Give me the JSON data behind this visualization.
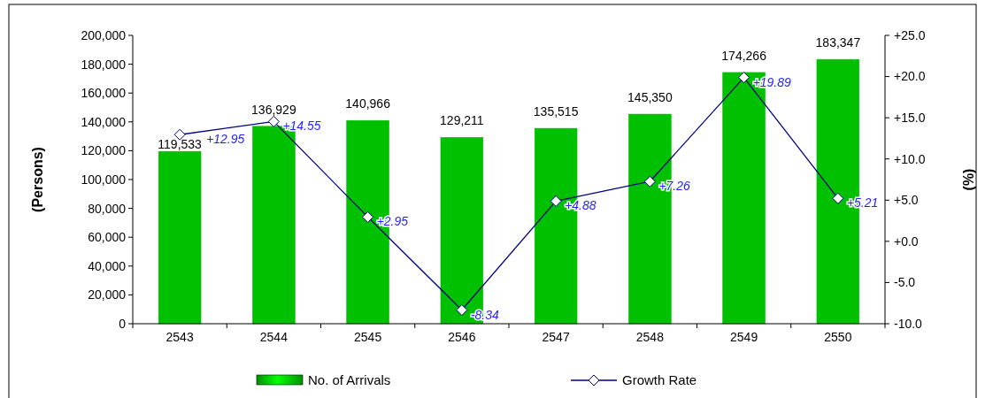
{
  "chart_data": {
    "type": "bar",
    "categories": [
      "2543",
      "2544",
      "2545",
      "2546",
      "2547",
      "2548",
      "2549",
      "2550"
    ],
    "ylabel": "(Persons)",
    "y2label": "(%)",
    "ylim": [
      0,
      200000
    ],
    "yticks": [
      0,
      {
        "value": 20000,
        "label": "20,000"
      },
      {
        "value": 40000,
        "label": "40,000"
      },
      {
        "value": 60000,
        "label": "60,000"
      },
      {
        "value": 80000,
        "label": "80,000"
      },
      {
        "value": 100000,
        "label": "100,000"
      },
      {
        "value": 120000,
        "label": "120,000"
      },
      {
        "value": 140000,
        "label": "140,000"
      },
      {
        "value": 160000,
        "label": "160,000"
      },
      {
        "value": 180000,
        "label": "180,000"
      },
      {
        "value": 200000,
        "label": "200,000"
      }
    ],
    "y2lim": [
      -10,
      25
    ],
    "y2ticks": [
      {
        "value": -10,
        "label": "-10.0"
      },
      {
        "value": -5,
        "label": "-5.0"
      },
      {
        "value": 0,
        "label": "+0.0"
      },
      {
        "value": 5,
        "label": "+5.0"
      },
      {
        "value": 10,
        "label": "+10.0"
      },
      {
        "value": 15,
        "label": "+15.0"
      },
      {
        "value": 20,
        "label": "+20.0"
      },
      {
        "value": 25,
        "label": "+25.0"
      }
    ],
    "series": [
      {
        "name": "No. of Arrivals",
        "color": "#00c000",
        "values": [
          119533,
          136929,
          140966,
          129211,
          135515,
          145350,
          174266,
          183347
        ],
        "value_labels": [
          "119,533",
          "136,929",
          "140,966",
          "129,211",
          "135,515",
          "145,350",
          "174,266",
          "183,347"
        ]
      },
      {
        "name": "Growth Rate",
        "type": "line",
        "axis": "y2",
        "color": "#000080",
        "marker": "diamond",
        "values": [
          12.95,
          14.55,
          2.95,
          -8.34,
          4.88,
          7.26,
          19.89,
          5.21
        ],
        "value_labels": [
          "+12.95",
          "+14.55",
          "+2.95",
          "-8.34",
          "+4.88",
          "+7.26",
          "+19.89",
          "+5.21"
        ]
      }
    ],
    "legend": "bottom",
    "grid": false
  }
}
